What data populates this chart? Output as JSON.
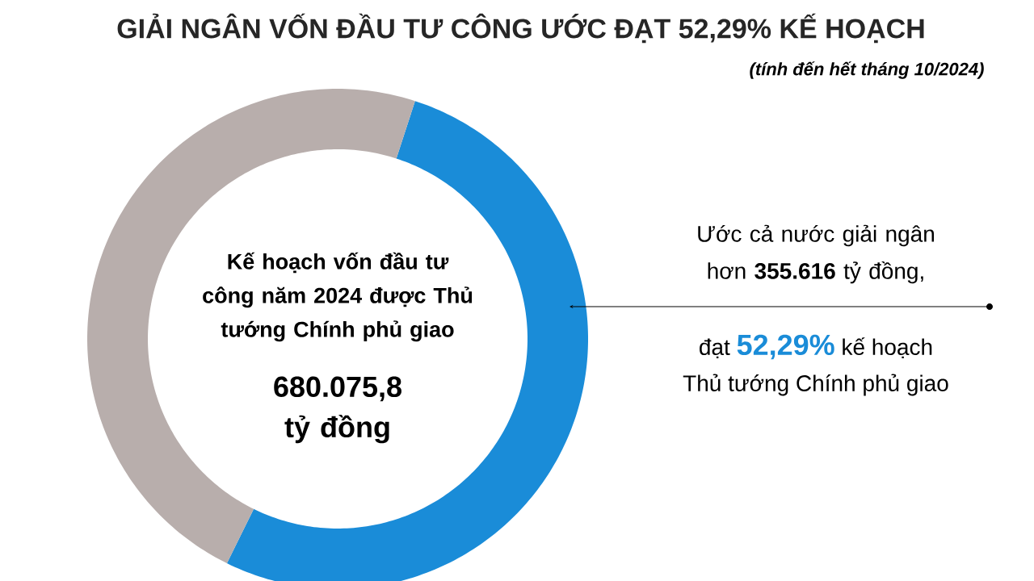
{
  "chart_data": {
    "type": "donut",
    "title": "GIẢI NGÂN VỐN ĐẦU TƯ CÔNG ƯỚC ĐẠT 52,29% KẾ HOẠCH",
    "subtitle": "(tính đến hết tháng 10/2024)",
    "categories": [
      null,
      null
    ],
    "values": [
      52.29,
      47.71
    ],
    "colors": [
      "#1a8cd8",
      "#b8aeac"
    ],
    "annotations": [
      "Kế hoạch vốn đầu tư công năm 2024 được Thủ tướng Chính phủ giao",
      "680.075,8 tỷ đồng",
      "Ước cả nước giải ngân hơn **355.616** tỷ đồng,",
      "đạt",
      "52,29%",
      "kế hoạch",
      "Thủ tướng Chính phủ giao"
    ]
  }
}
